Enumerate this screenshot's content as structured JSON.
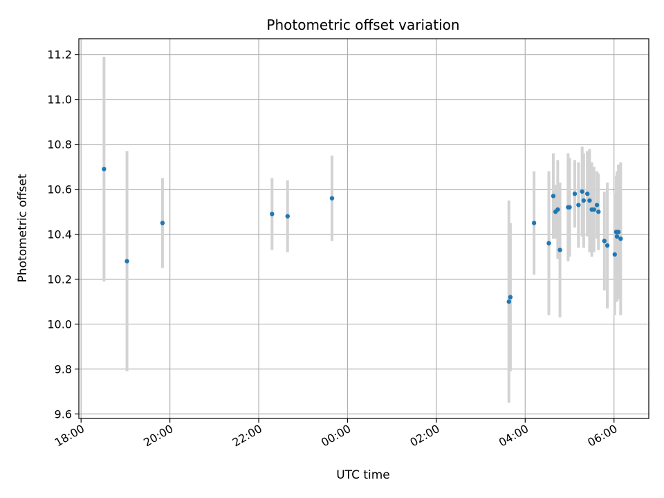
{
  "chart_data": {
    "type": "scatter",
    "title": "Photometric offset variation",
    "xlabel": "UTC time",
    "ylabel": "Photometric offset",
    "grid": true,
    "legend": "none",
    "x_unit": "UTC time (HH:MM), times after midnight are on the following day",
    "xlim": [
      "17:57",
      "06:47"
    ],
    "ylim": [
      9.58,
      11.27
    ],
    "x_ticks": [
      "18:00",
      "20:00",
      "22:00",
      "00:00",
      "02:00",
      "04:00",
      "06:00"
    ],
    "y_ticks": [
      "9.6",
      "9.8",
      "10.0",
      "10.2",
      "10.4",
      "10.6",
      "10.8",
      "11.0",
      "11.2"
    ],
    "colors": {
      "point": "#1f77b4",
      "errorbar": "#d3d3d3",
      "grid": "#b0b0b0"
    },
    "series": [
      {
        "points": [
          {
            "x": "18:31",
            "y": 10.69,
            "yerr": 0.5
          },
          {
            "x": "19:02",
            "y": 10.28,
            "yerr": 0.49
          },
          {
            "x": "19:50",
            "y": 10.45,
            "yerr": 0.2
          },
          {
            "x": "22:18",
            "y": 10.49,
            "yerr": 0.16
          },
          {
            "x": "22:39",
            "y": 10.48,
            "yerr": 0.16
          },
          {
            "x": "23:39",
            "y": 10.56,
            "yerr": 0.19
          },
          {
            "x": "03:38",
            "y": 10.1,
            "yerr": 0.45
          },
          {
            "x": "03:40",
            "y": 10.12,
            "yerr": 0.33
          },
          {
            "x": "04:12",
            "y": 10.45,
            "yerr": 0.23
          },
          {
            "x": "04:32",
            "y": 10.36,
            "yerr": 0.32
          },
          {
            "x": "04:38",
            "y": 10.57,
            "yerr": 0.19
          },
          {
            "x": "04:41",
            "y": 10.5,
            "yerr": 0.12
          },
          {
            "x": "04:44",
            "y": 10.51,
            "yerr": 0.22
          },
          {
            "x": "04:47",
            "y": 10.33,
            "yerr": 0.3
          },
          {
            "x": "04:58",
            "y": 10.52,
            "yerr": 0.24
          },
          {
            "x": "05:00",
            "y": 10.52,
            "yerr": 0.22
          },
          {
            "x": "05:07",
            "y": 10.58,
            "yerr": 0.15
          },
          {
            "x": "05:12",
            "y": 10.53,
            "yerr": 0.19
          },
          {
            "x": "05:17",
            "y": 10.59,
            "yerr": 0.2
          },
          {
            "x": "05:19",
            "y": 10.55,
            "yerr": 0.21
          },
          {
            "x": "05:24",
            "y": 10.58,
            "yerr": 0.19
          },
          {
            "x": "05:27",
            "y": 10.55,
            "yerr": 0.23
          },
          {
            "x": "05:30",
            "y": 10.51,
            "yerr": 0.21
          },
          {
            "x": "05:33",
            "y": 10.51,
            "yerr": 0.19
          },
          {
            "x": "05:37",
            "y": 10.53,
            "yerr": 0.15
          },
          {
            "x": "05:39",
            "y": 10.5,
            "yerr": 0.17
          },
          {
            "x": "05:47",
            "y": 10.37,
            "yerr": 0.22
          },
          {
            "x": "05:51",
            "y": 10.35,
            "yerr": 0.28
          },
          {
            "x": "06:01",
            "y": 10.31,
            "yerr": 0.27
          },
          {
            "x": "06:03",
            "y": 10.41,
            "yerr": 0.25
          },
          {
            "x": "06:04",
            "y": 10.39,
            "yerr": 0.29
          },
          {
            "x": "06:06",
            "y": 10.41,
            "yerr": 0.3
          },
          {
            "x": "06:09",
            "y": 10.38,
            "yerr": 0.34
          }
        ]
      }
    ]
  }
}
